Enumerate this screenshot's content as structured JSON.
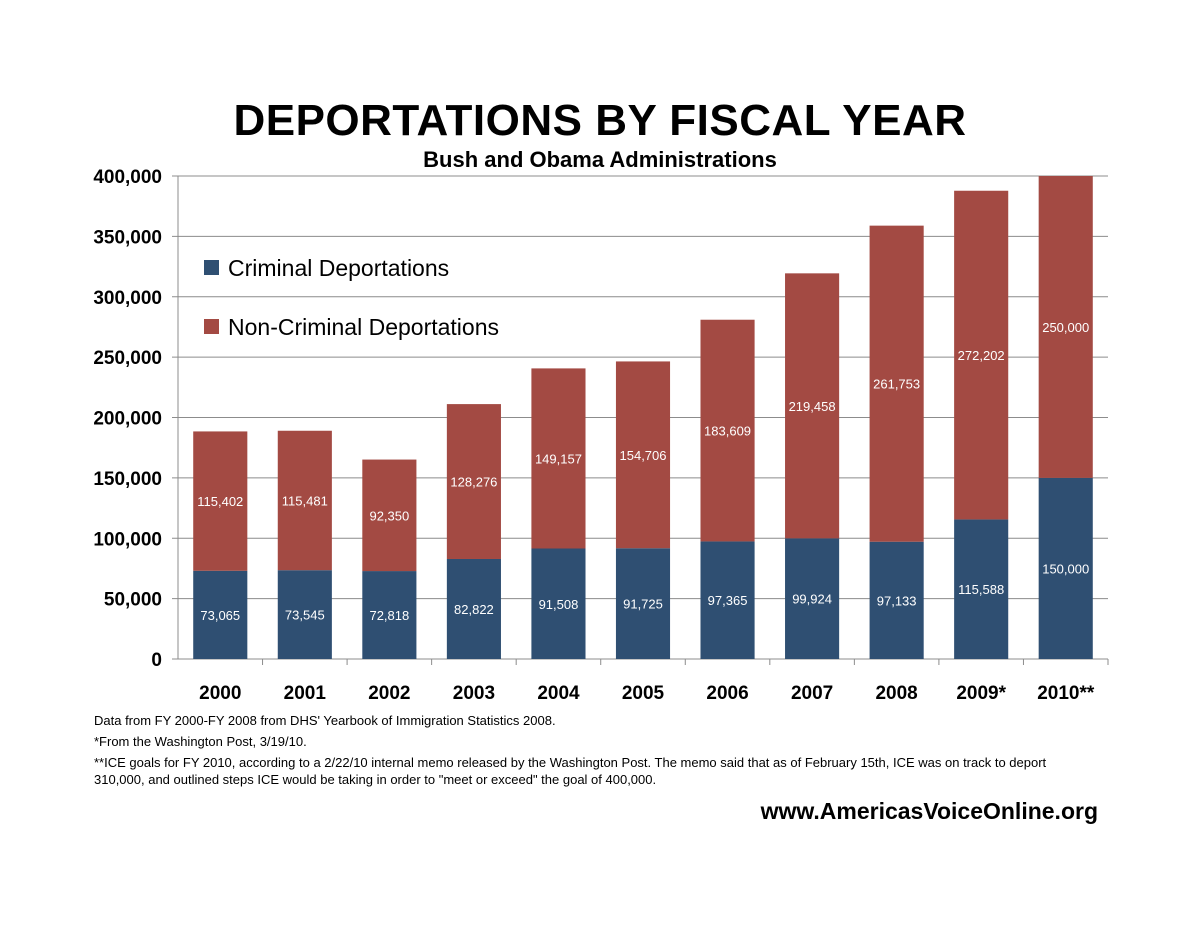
{
  "chart_data": {
    "type": "bar",
    "stacked": true,
    "title": "DEPORTATIONS BY FISCAL YEAR",
    "subtitle": "Bush and Obama Administrations",
    "xlabel": "",
    "ylabel": "",
    "ylim": [
      0,
      400000
    ],
    "yticks": [
      0,
      50000,
      100000,
      150000,
      200000,
      250000,
      300000,
      350000,
      400000
    ],
    "ytick_labels": [
      "0",
      "50,000",
      "100,000",
      "150,000",
      "200,000",
      "250,000",
      "300,000",
      "350,000",
      "400,000"
    ],
    "grid": true,
    "legend_position": "top-left",
    "categories": [
      "2000",
      "2001",
      "2002",
      "2003",
      "2004",
      "2005",
      "2006",
      "2007",
      "2008",
      "2009*",
      "2010**"
    ],
    "series": [
      {
        "name": "Criminal Deportations",
        "color": "#2f4f72",
        "values": [
          73065,
          73545,
          72818,
          82822,
          91508,
          91725,
          97365,
          99924,
          97133,
          115588,
          150000
        ],
        "labels": [
          "73,065",
          "73,545",
          "72,818",
          "82,822",
          "91,508",
          "91,725",
          "97,365",
          "99,924",
          "97,133",
          "115,588",
          "150,000"
        ]
      },
      {
        "name": "Non-Criminal Deportations",
        "color": "#a34a43",
        "values": [
          115402,
          115481,
          92350,
          128276,
          149157,
          154706,
          183609,
          219458,
          261753,
          272202,
          250000
        ],
        "labels": [
          "115,402",
          "115,481",
          "92,350",
          "128,276",
          "149,157",
          "154,706",
          "183,609",
          "219,458",
          "261,753",
          "272,202",
          "250,000"
        ]
      }
    ]
  },
  "notes": [
    "Data from FY 2000-FY 2008 from DHS' Yearbook of Immigration Statistics 2008.",
    "*From the Washington Post, 3/19/10.",
    "**ICE goals for FY 2010, according to a 2/22/10 internal memo released by the Washington Post. The memo said that as of February 15th, ICE was on track to deport 310,000, and outlined steps ICE would be taking in order to \"meet or exceed\" the goal of 400,000."
  ],
  "website": "www.AmericasVoiceOnline.org"
}
